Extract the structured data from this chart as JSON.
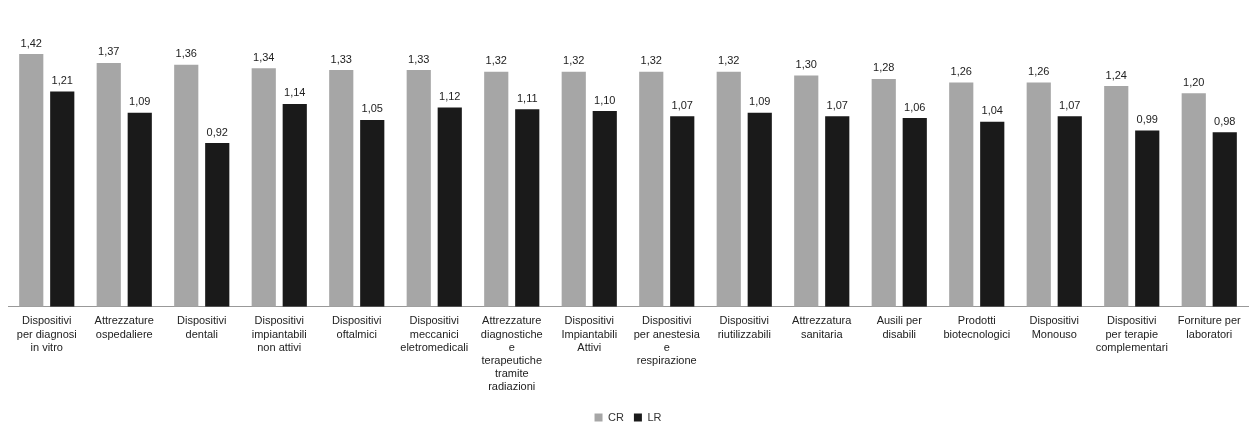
{
  "chart_data": {
    "type": "bar",
    "categories": [
      "Dispositivi per diagnosi in vitro",
      "Attrezzature ospedaliere",
      "Dispositivi dentali",
      "Dispositivi impiantabili non attivi",
      "Dispositivi oftalmici",
      "Dispositivi meccanici eletromedicali",
      "Attrezzature diagnostiche e terapeutiche tramite radiazioni",
      "Dispositivi Impiantabili Attivi",
      "Dispositivi per anestesia e respirazione",
      "Dispositivi riutilizzabili",
      "Attrezzatura sanitaria",
      "Ausili per disabili",
      "Prodotti biotecnologici",
      "Dispositivi Monouso",
      "Dispositivi per terapie complementari",
      "Forniture per laboratori"
    ],
    "series": [
      {
        "name": "CR",
        "color": "#a6a6a6",
        "values": [
          1.42,
          1.37,
          1.36,
          1.34,
          1.33,
          1.33,
          1.32,
          1.32,
          1.32,
          1.32,
          1.3,
          1.28,
          1.26,
          1.26,
          1.24,
          1.2
        ],
        "value_labels": [
          "1,42",
          "1,37",
          "1,36",
          "1,34",
          "1,33",
          "1,33",
          "1,32",
          "1,32",
          "1,32",
          "1,32",
          "1,30",
          "1,28",
          "1,26",
          "1,26",
          "1,24",
          "1,20"
        ]
      },
      {
        "name": "LR",
        "color": "#1a1a1a",
        "values": [
          1.21,
          1.09,
          0.92,
          1.14,
          1.05,
          1.12,
          1.11,
          1.1,
          1.07,
          1.09,
          1.07,
          1.06,
          1.04,
          1.07,
          0.99,
          0.98
        ],
        "value_labels": [
          "1,21",
          "1,09",
          "0,92",
          "1,14",
          "1,05",
          "1,12",
          "1,11",
          "1,10",
          "1,07",
          "1,09",
          "1,07",
          "1,06",
          "1,04",
          "1,07",
          "0,99",
          "0,98"
        ]
      }
    ],
    "tick_labels": "x",
    "grid": false,
    "legend": "bottom"
  }
}
